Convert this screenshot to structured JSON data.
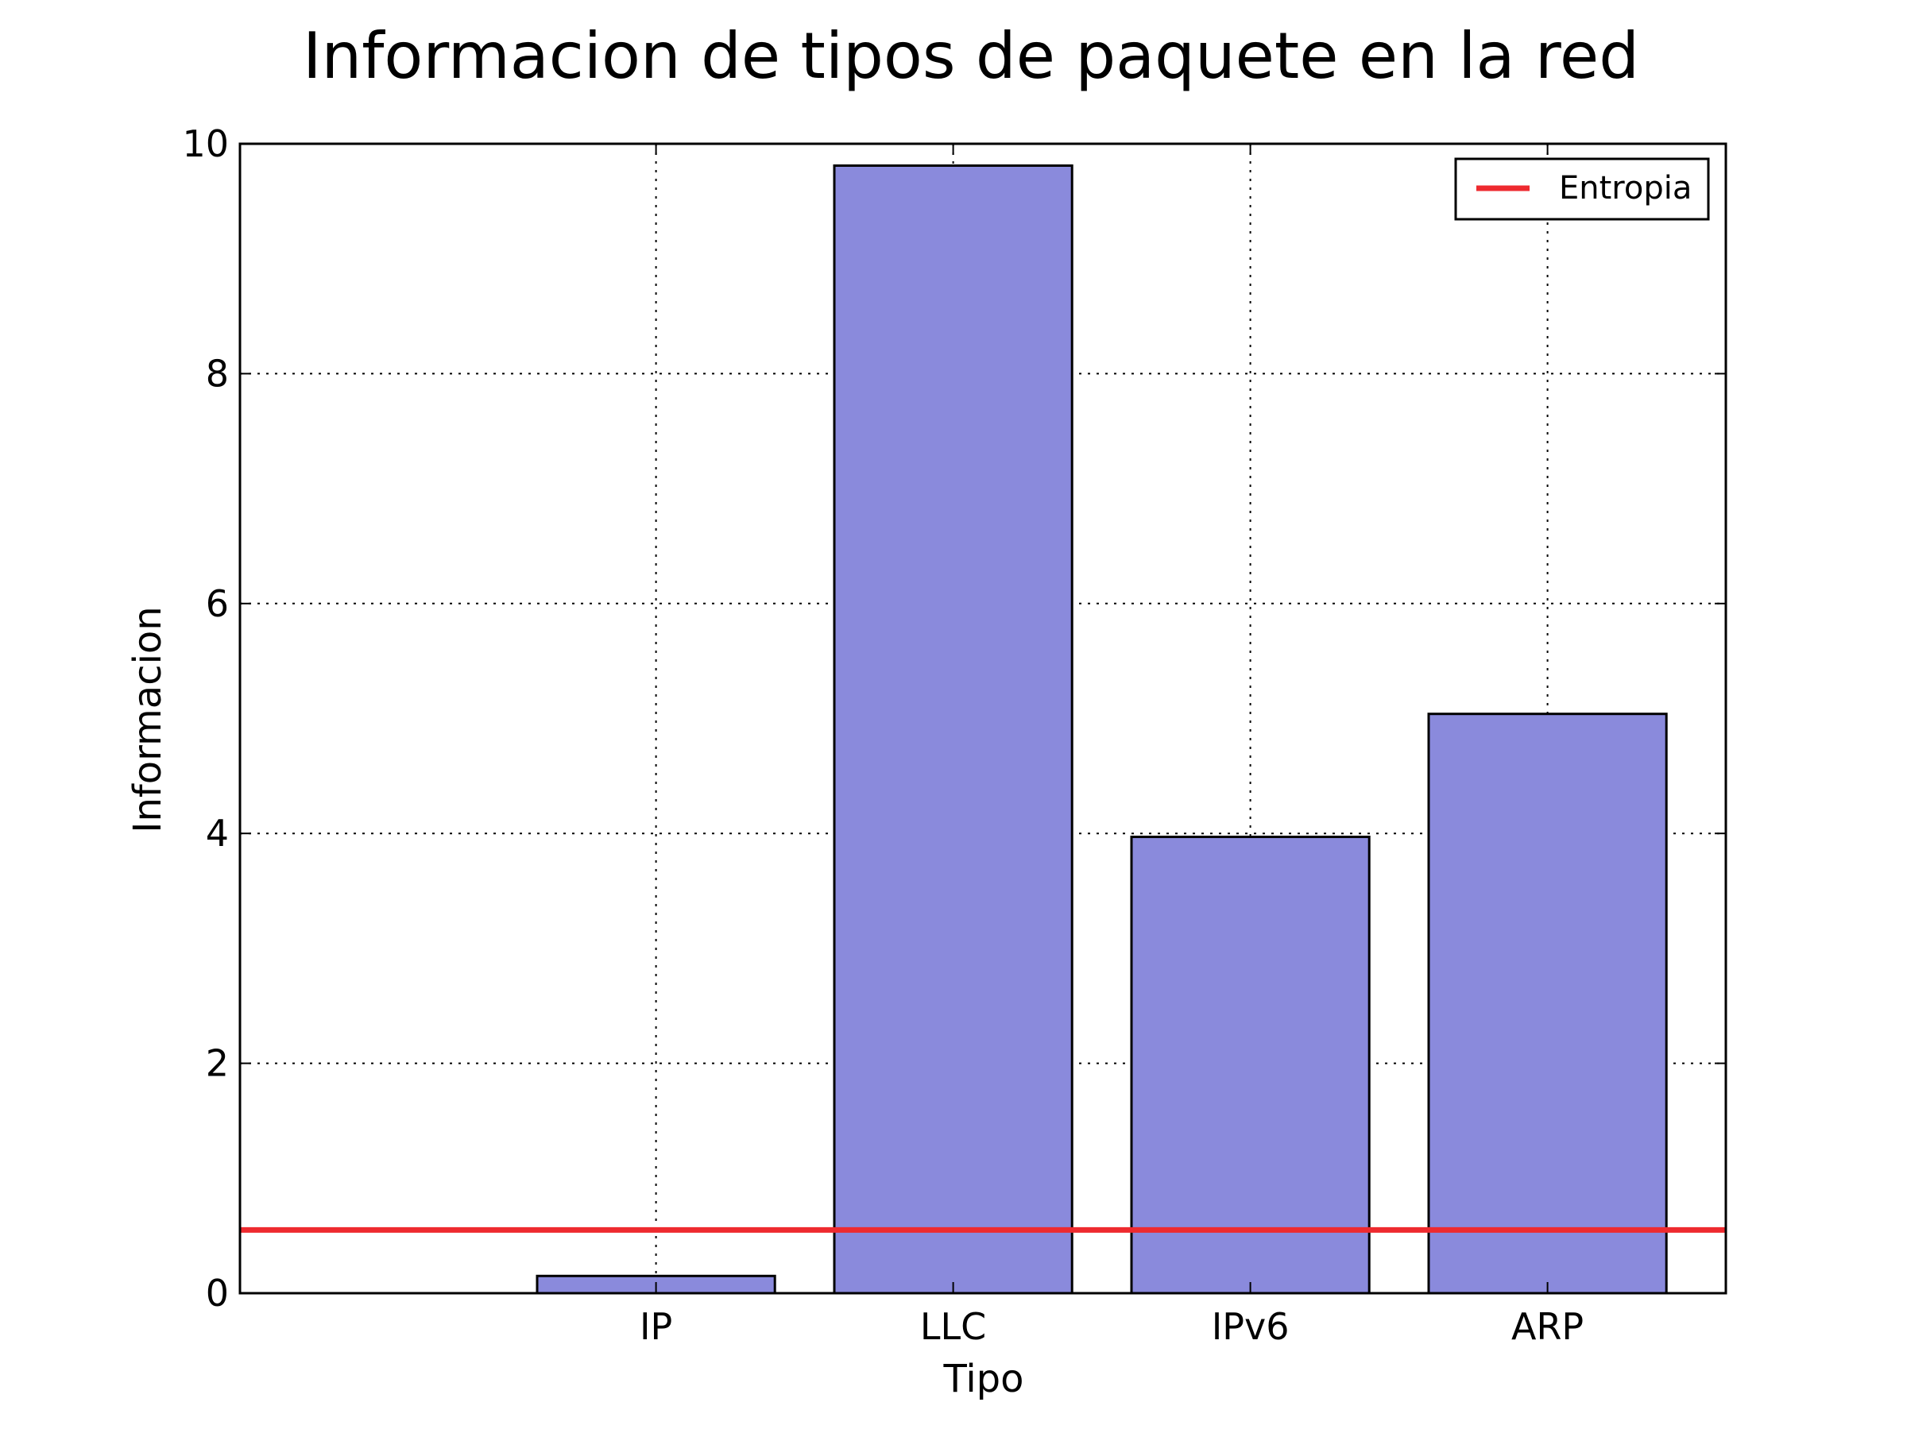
{
  "chart_data": {
    "type": "bar",
    "title": "Informacion de tipos de paquete en la red",
    "xlabel": "Tipo",
    "ylabel": "Informacion",
    "categories": [
      "IP",
      "LLC",
      "IPv6",
      "ARP"
    ],
    "series": [
      {
        "values": [
          0.15,
          9.81,
          3.97,
          5.04
        ],
        "color": "#8a8adc"
      }
    ],
    "reference_line": {
      "name": "Entropia",
      "value": 0.55,
      "color": "#ee2a2f"
    },
    "ylim": [
      0,
      10
    ],
    "yticks": [
      "0",
      "2",
      "4",
      "6",
      "8",
      "10"
    ],
    "ytick_values": [
      0,
      2,
      4,
      6,
      8,
      10
    ],
    "grid": true,
    "legend_position": "top-right"
  }
}
